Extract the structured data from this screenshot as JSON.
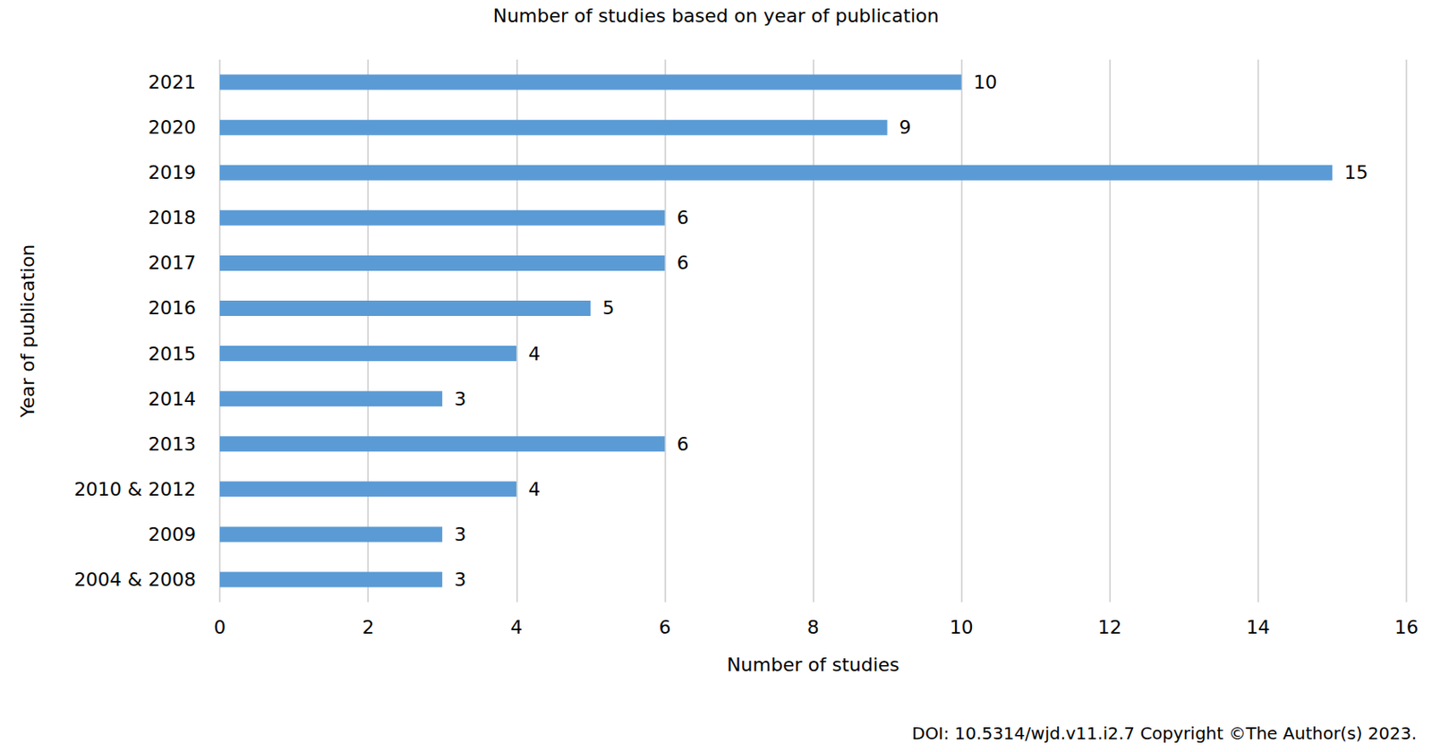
{
  "chart_data": {
    "type": "bar",
    "title": "Number of studies based on year of publication",
    "x_label": "Number of studies",
    "y_label": "Year of publication",
    "annotation": "DOI: 10.5314/wjd.v11.i2.7 Copyright ©The Author(s) 2023.",
    "orientation": "horizontal",
    "categories": [
      "2004 & 2008",
      "2009",
      "2010 & 2012",
      "2013",
      "2014",
      "2015",
      "2016",
      "2017",
      "2018",
      "2019",
      "2020",
      "2021"
    ],
    "values": [
      3,
      3,
      4,
      6,
      3,
      4,
      5,
      6,
      6,
      15,
      9,
      10
    ],
    "color": "#5b9bd5",
    "xlim": [
      0,
      16
    ],
    "xticks": [
      0,
      2,
      4,
      6,
      8,
      10,
      12,
      14,
      16
    ],
    "grid": true,
    "data_labels": true
  }
}
